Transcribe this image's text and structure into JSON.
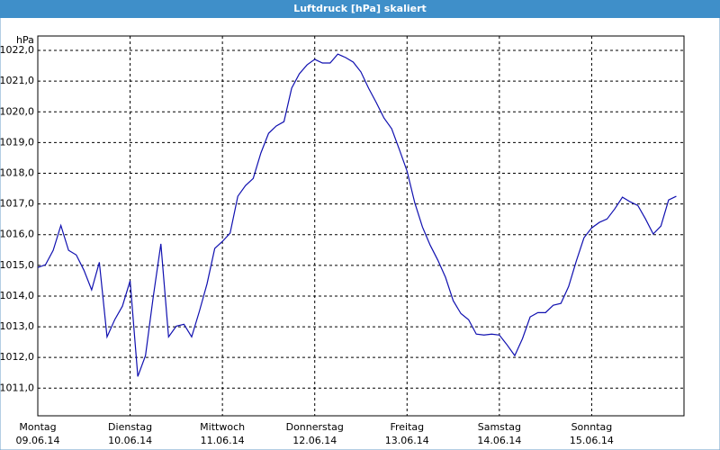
{
  "chart_data": {
    "type": "line",
    "title": "Luftdruck [hPa] skaliert",
    "y_label": "hPa",
    "x": [
      0,
      2,
      4,
      6,
      8,
      10,
      12,
      14,
      16,
      18,
      20,
      22,
      24,
      26,
      28,
      30,
      32,
      34,
      36,
      38,
      40,
      42,
      44,
      46,
      48,
      50,
      52,
      54,
      56,
      58,
      60,
      62,
      64,
      66,
      68,
      70,
      72,
      74,
      76,
      78,
      80,
      82,
      84,
      86,
      88,
      90,
      92,
      94,
      96,
      98,
      100,
      102,
      104,
      106,
      108,
      110,
      112,
      114,
      116,
      118,
      120,
      122,
      124,
      126,
      128,
      130,
      132,
      134,
      136,
      138,
      140,
      142,
      144,
      146,
      148,
      150,
      152,
      154,
      156,
      158,
      160,
      162,
      164,
      166
    ],
    "values": [
      1014.93,
      1015.02,
      1015.49,
      1016.3,
      1015.49,
      1015.34,
      1014.84,
      1014.2,
      1015.1,
      1012.67,
      1013.23,
      1013.67,
      1014.5,
      1011.38,
      1012.06,
      1013.96,
      1015.7,
      1012.67,
      1013.02,
      1013.08,
      1012.67,
      1013.5,
      1014.4,
      1015.55,
      1015.78,
      1016.05,
      1017.25,
      1017.6,
      1017.83,
      1018.66,
      1019.3,
      1019.54,
      1019.68,
      1020.77,
      1021.24,
      1021.53,
      1021.71,
      1021.59,
      1021.59,
      1021.88,
      1021.77,
      1021.62,
      1021.3,
      1020.77,
      1020.3,
      1019.8,
      1019.45,
      1018.77,
      1018.07,
      1017.04,
      1016.25,
      1015.66,
      1015.17,
      1014.61,
      1013.85,
      1013.43,
      1013.23,
      1012.76,
      1012.73,
      1012.76,
      1012.73,
      1012.41,
      1012.06,
      1012.61,
      1013.32,
      1013.46,
      1013.46,
      1013.7,
      1013.76,
      1014.31,
      1015.14,
      1015.9,
      1016.22,
      1016.4,
      1016.51,
      1016.84,
      1017.22,
      1017.07,
      1016.95,
      1016.51,
      1016.02,
      1016.28,
      1017.13,
      1017.25
    ],
    "color": "#1010b0",
    "xlim": [
      0,
      168
    ],
    "xticks": [
      {
        "value": 0,
        "label": "Montag"
      },
      {
        "value": 24,
        "label": "Dienstag"
      },
      {
        "value": 48,
        "label": "Mittwoch"
      },
      {
        "value": 72,
        "label": "Donnerstag"
      },
      {
        "value": 96,
        "label": "Freitag"
      },
      {
        "value": 120,
        "label": "Samstag"
      },
      {
        "value": 144,
        "label": "Sonntag"
      }
    ],
    "xtick_dates": [
      "09.06.14",
      "10.06.14",
      "11.06.14",
      "12.06.14",
      "13.06.14",
      "14.06.14",
      "15.06.14"
    ],
    "ylim": [
      1010.1,
      1022.47
    ],
    "yticks": [
      {
        "value": 1011,
        "label": "1011,0"
      },
      {
        "value": 1012,
        "label": "1012,0"
      },
      {
        "value": 1013,
        "label": "1013,0"
      },
      {
        "value": 1014,
        "label": "1014,0"
      },
      {
        "value": 1015,
        "label": "1015,0"
      },
      {
        "value": 1016,
        "label": "1016,0"
      },
      {
        "value": 1017,
        "label": "1017,0"
      },
      {
        "value": 1018,
        "label": "1018,0"
      },
      {
        "value": 1019,
        "label": "1019,0"
      },
      {
        "value": 1020,
        "label": "1020,0"
      },
      {
        "value": 1021,
        "label": "1021,0"
      },
      {
        "value": 1022,
        "label": "1022,0"
      }
    ],
    "grid": true
  }
}
